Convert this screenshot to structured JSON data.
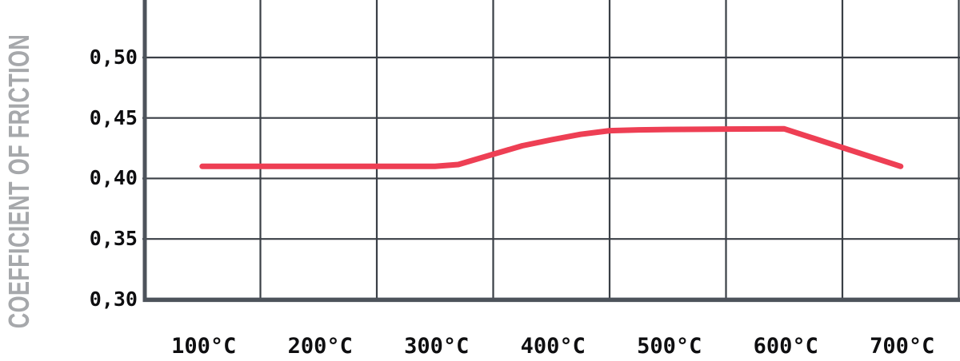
{
  "page": {
    "background": "#ffffff"
  },
  "colors": {
    "series_line": "#ee3f54",
    "grid_line": "#3a3f46",
    "axis_line": "#4d535b",
    "tick_text": "#0e0e10",
    "axis_title_text": "#a6a8ab"
  },
  "chart_data": {
    "type": "line",
    "title": "",
    "xlabel": "",
    "ylabel": "COEFFICIENT OF FRICTION",
    "categories": [
      "100°C",
      "200°C",
      "300°C",
      "400°C",
      "500°C",
      "600°C",
      "700°C"
    ],
    "x_values": [
      100,
      200,
      300,
      400,
      500,
      600,
      700
    ],
    "series": [
      {
        "name": "coefficient-of-friction",
        "color": "#ee3f54",
        "values": [
          0.41,
          0.41,
          0.41,
          0.43,
          0.44,
          0.44,
          0.41
        ]
      }
    ],
    "curve_points": [
      [
        100,
        0.41
      ],
      [
        150,
        0.41
      ],
      [
        200,
        0.41
      ],
      [
        250,
        0.41
      ],
      [
        300,
        0.41
      ],
      [
        320,
        0.4115
      ],
      [
        350,
        0.42
      ],
      [
        375,
        0.427
      ],
      [
        400,
        0.432
      ],
      [
        425,
        0.4365
      ],
      [
        450,
        0.4395
      ],
      [
        475,
        0.4402
      ],
      [
        500,
        0.4405
      ],
      [
        550,
        0.4408
      ],
      [
        600,
        0.441
      ],
      [
        700,
        0.41
      ]
    ],
    "y_ticks": [
      {
        "value": 0.5,
        "label": "0,50"
      },
      {
        "value": 0.45,
        "label": "0,45"
      },
      {
        "value": 0.4,
        "label": "0,40"
      },
      {
        "value": 0.35,
        "label": "0,35"
      },
      {
        "value": 0.3,
        "label": "0,30"
      }
    ],
    "x_ticks": [
      {
        "value": 100,
        "label": "100°C"
      },
      {
        "value": 200,
        "label": "200°C"
      },
      {
        "value": 300,
        "label": "300°C"
      },
      {
        "value": 400,
        "label": "400°C"
      },
      {
        "value": 500,
        "label": "500°C"
      },
      {
        "value": 600,
        "label": "600°C"
      },
      {
        "value": 700,
        "label": "700°C"
      }
    ],
    "ylim_visible": [
      0.3,
      0.548
    ],
    "xlim_visible": [
      50,
      750
    ],
    "grid": true,
    "legend_position": "none",
    "decimal_separator": ","
  }
}
